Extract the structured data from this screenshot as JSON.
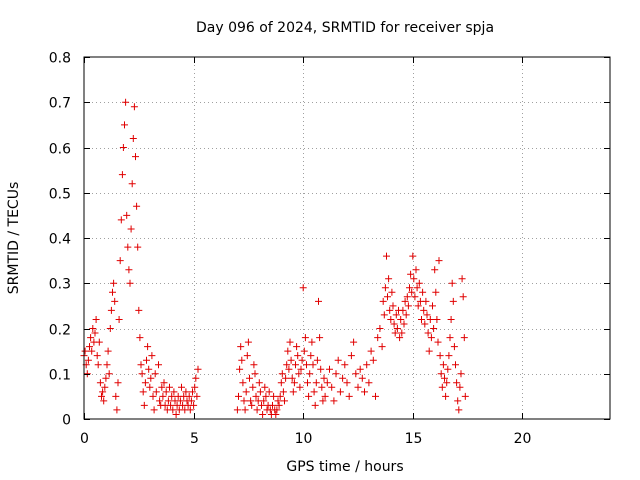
{
  "chart_data": {
    "type": "scatter",
    "title": "Day 096 of 2024, SRMTID for receiver spja",
    "xlabel": "GPS time / hours",
    "ylabel": "SRMTID / TECUs",
    "xlim": [
      0,
      24
    ],
    "ylim": [
      0,
      0.8
    ],
    "xticks": [
      0,
      5,
      10,
      15,
      20
    ],
    "yticks": [
      0,
      0.1,
      0.2,
      0.3,
      0.4,
      0.5,
      0.6,
      0.7,
      0.8
    ],
    "xtick_labels": [
      "0",
      "5",
      "10",
      "15",
      "20"
    ],
    "ytick_labels": [
      "0",
      "0.1",
      "0.2",
      "0.3",
      "0.4",
      "0.5",
      "0.6",
      "0.7",
      "0.8"
    ],
    "grid": true,
    "marker": "+",
    "color": "#e00000",
    "series": [
      {
        "name": "SRMTID",
        "points": [
          [
            0.0,
            0.14
          ],
          [
            0.05,
            0.15
          ],
          [
            0.1,
            0.12
          ],
          [
            0.15,
            0.1
          ],
          [
            0.2,
            0.13
          ],
          [
            0.25,
            0.16
          ],
          [
            0.3,
            0.18
          ],
          [
            0.35,
            0.15
          ],
          [
            0.4,
            0.2
          ],
          [
            0.45,
            0.17
          ],
          [
            0.5,
            0.19
          ],
          [
            0.55,
            0.22
          ],
          [
            0.6,
            0.14
          ],
          [
            0.65,
            0.12
          ],
          [
            0.7,
            0.17
          ],
          [
            0.75,
            0.08
          ],
          [
            0.8,
            0.05
          ],
          [
            0.85,
            0.06
          ],
          [
            0.9,
            0.04
          ],
          [
            0.95,
            0.07
          ],
          [
            1.0,
            0.09
          ],
          [
            1.05,
            0.12
          ],
          [
            1.1,
            0.15
          ],
          [
            1.15,
            0.1
          ],
          [
            1.2,
            0.2
          ],
          [
            1.25,
            0.24
          ],
          [
            1.3,
            0.28
          ],
          [
            1.35,
            0.3
          ],
          [
            1.4,
            0.26
          ],
          [
            1.45,
            0.05
          ],
          [
            1.5,
            0.02
          ],
          [
            1.55,
            0.08
          ],
          [
            1.6,
            0.22
          ],
          [
            1.65,
            0.35
          ],
          [
            1.7,
            0.44
          ],
          [
            1.75,
            0.54
          ],
          [
            1.8,
            0.6
          ],
          [
            1.85,
            0.65
          ],
          [
            1.9,
            0.7
          ],
          [
            1.95,
            0.45
          ],
          [
            2.0,
            0.38
          ],
          [
            2.05,
            0.33
          ],
          [
            2.1,
            0.3
          ],
          [
            2.15,
            0.42
          ],
          [
            2.2,
            0.52
          ],
          [
            2.25,
            0.62
          ],
          [
            2.3,
            0.69
          ],
          [
            2.35,
            0.58
          ],
          [
            2.4,
            0.47
          ],
          [
            2.45,
            0.38
          ],
          [
            2.5,
            0.24
          ],
          [
            2.55,
            0.18
          ],
          [
            2.6,
            0.12
          ],
          [
            2.65,
            0.1
          ],
          [
            2.7,
            0.06
          ],
          [
            2.75,
            0.03
          ],
          [
            2.8,
            0.08
          ],
          [
            2.85,
            0.13
          ],
          [
            2.9,
            0.16
          ],
          [
            2.95,
            0.11
          ],
          [
            3.0,
            0.07
          ],
          [
            3.05,
            0.09
          ],
          [
            3.1,
            0.14
          ],
          [
            3.15,
            0.05
          ],
          [
            3.2,
            0.02
          ],
          [
            3.25,
            0.1
          ],
          [
            3.3,
            0.06
          ],
          [
            3.4,
            0.12
          ],
          [
            3.45,
            0.04
          ],
          [
            3.5,
            0.03
          ],
          [
            3.55,
            0.07
          ],
          [
            3.6,
            0.05
          ],
          [
            3.65,
            0.08
          ],
          [
            3.7,
            0.03
          ],
          [
            3.75,
            0.06
          ],
          [
            3.8,
            0.02
          ],
          [
            3.85,
            0.04
          ],
          [
            3.9,
            0.07
          ],
          [
            3.95,
            0.03
          ],
          [
            4.0,
            0.05
          ],
          [
            4.05,
            0.02
          ],
          [
            4.1,
            0.06
          ],
          [
            4.15,
            0.04
          ],
          [
            4.2,
            0.01
          ],
          [
            4.25,
            0.03
          ],
          [
            4.3,
            0.05
          ],
          [
            4.35,
            0.02
          ],
          [
            4.4,
            0.04
          ],
          [
            4.45,
            0.07
          ],
          [
            4.5,
            0.03
          ],
          [
            4.55,
            0.05
          ],
          [
            4.6,
            0.02
          ],
          [
            4.65,
            0.06
          ],
          [
            4.7,
            0.04
          ],
          [
            4.75,
            0.03
          ],
          [
            4.8,
            0.05
          ],
          [
            4.85,
            0.02
          ],
          [
            4.9,
            0.04
          ],
          [
            4.95,
            0.06
          ],
          [
            5.0,
            0.03
          ],
          [
            5.05,
            0.07
          ],
          [
            5.1,
            0.09
          ],
          [
            5.15,
            0.05
          ],
          [
            5.2,
            0.11
          ],
          [
            7.0,
            0.02
          ],
          [
            7.05,
            0.05
          ],
          [
            7.1,
            0.11
          ],
          [
            7.15,
            0.16
          ],
          [
            7.2,
            0.13
          ],
          [
            7.25,
            0.08
          ],
          [
            7.3,
            0.04
          ],
          [
            7.35,
            0.02
          ],
          [
            7.4,
            0.06
          ],
          [
            7.45,
            0.14
          ],
          [
            7.5,
            0.17
          ],
          [
            7.55,
            0.09
          ],
          [
            7.6,
            0.04
          ],
          [
            7.65,
            0.03
          ],
          [
            7.7,
            0.07
          ],
          [
            7.75,
            0.12
          ],
          [
            7.8,
            0.1
          ],
          [
            7.85,
            0.05
          ],
          [
            7.9,
            0.02
          ],
          [
            7.95,
            0.04
          ],
          [
            8.0,
            0.08
          ],
          [
            8.05,
            0.06
          ],
          [
            8.1,
            0.03
          ],
          [
            8.15,
            0.01
          ],
          [
            8.2,
            0.04
          ],
          [
            8.25,
            0.07
          ],
          [
            8.3,
            0.05
          ],
          [
            8.35,
            0.02
          ],
          [
            8.4,
            0.03
          ],
          [
            8.45,
            0.06
          ],
          [
            8.5,
            0.02
          ],
          [
            8.55,
            0.01
          ],
          [
            8.6,
            0.03
          ],
          [
            8.65,
            0.05
          ],
          [
            8.7,
            0.02
          ],
          [
            8.75,
            0.01
          ],
          [
            8.8,
            0.02
          ],
          [
            8.85,
            0.04
          ],
          [
            8.9,
            0.03
          ],
          [
            8.95,
            0.05
          ],
          [
            9.0,
            0.08
          ],
          [
            9.05,
            0.1
          ],
          [
            9.1,
            0.06
          ],
          [
            9.15,
            0.04
          ],
          [
            9.2,
            0.09
          ],
          [
            9.25,
            0.12
          ],
          [
            9.3,
            0.15
          ],
          [
            9.35,
            0.11
          ],
          [
            9.4,
            0.17
          ],
          [
            9.45,
            0.13
          ],
          [
            9.5,
            0.09
          ],
          [
            9.55,
            0.06
          ],
          [
            9.6,
            0.08
          ],
          [
            9.65,
            0.12
          ],
          [
            9.7,
            0.16
          ],
          [
            9.75,
            0.14
          ],
          [
            9.8,
            0.1
          ],
          [
            9.85,
            0.07
          ],
          [
            9.9,
            0.11
          ],
          [
            9.95,
            0.13
          ],
          [
            10.0,
            0.29
          ],
          [
            10.05,
            0.15
          ],
          [
            10.1,
            0.18
          ],
          [
            10.15,
            0.12
          ],
          [
            10.2,
            0.08
          ],
          [
            10.25,
            0.05
          ],
          [
            10.3,
            0.1
          ],
          [
            10.35,
            0.14
          ],
          [
            10.4,
            0.17
          ],
          [
            10.45,
            0.12
          ],
          [
            10.5,
            0.06
          ],
          [
            10.55,
            0.03
          ],
          [
            10.6,
            0.08
          ],
          [
            10.65,
            0.13
          ],
          [
            10.7,
            0.26
          ],
          [
            10.75,
            0.18
          ],
          [
            10.8,
            0.11
          ],
          [
            10.85,
            0.07
          ],
          [
            10.9,
            0.04
          ],
          [
            10.95,
            0.09
          ],
          [
            11.0,
            0.05
          ],
          [
            11.1,
            0.08
          ],
          [
            11.2,
            0.11
          ],
          [
            11.3,
            0.07
          ],
          [
            11.4,
            0.04
          ],
          [
            11.5,
            0.1
          ],
          [
            11.6,
            0.13
          ],
          [
            11.7,
            0.06
          ],
          [
            11.8,
            0.09
          ],
          [
            11.9,
            0.12
          ],
          [
            12.0,
            0.08
          ],
          [
            12.1,
            0.05
          ],
          [
            12.2,
            0.14
          ],
          [
            12.3,
            0.17
          ],
          [
            12.4,
            0.1
          ],
          [
            12.5,
            0.07
          ],
          [
            12.6,
            0.11
          ],
          [
            12.7,
            0.09
          ],
          [
            12.8,
            0.06
          ],
          [
            12.9,
            0.12
          ],
          [
            13.0,
            0.08
          ],
          [
            13.1,
            0.15
          ],
          [
            13.2,
            0.13
          ],
          [
            13.3,
            0.05
          ],
          [
            13.4,
            0.18
          ],
          [
            13.5,
            0.2
          ],
          [
            13.6,
            0.16
          ],
          [
            13.65,
            0.26
          ],
          [
            13.7,
            0.23
          ],
          [
            13.75,
            0.29
          ],
          [
            13.8,
            0.36
          ],
          [
            13.85,
            0.27
          ],
          [
            13.9,
            0.31
          ],
          [
            13.95,
            0.24
          ],
          [
            14.0,
            0.22
          ],
          [
            14.05,
            0.28
          ],
          [
            14.1,
            0.25
          ],
          [
            14.15,
            0.21
          ],
          [
            14.2,
            0.19
          ],
          [
            14.25,
            0.23
          ],
          [
            14.3,
            0.2
          ],
          [
            14.35,
            0.24
          ],
          [
            14.4,
            0.18
          ],
          [
            14.45,
            0.22
          ],
          [
            14.5,
            0.19
          ],
          [
            14.55,
            0.24
          ],
          [
            14.6,
            0.21
          ],
          [
            14.65,
            0.26
          ],
          [
            14.7,
            0.23
          ],
          [
            14.75,
            0.27
          ],
          [
            14.8,
            0.25
          ],
          [
            14.85,
            0.29
          ],
          [
            14.9,
            0.32
          ],
          [
            14.95,
            0.28
          ],
          [
            15.0,
            0.36
          ],
          [
            15.05,
            0.31
          ],
          [
            15.1,
            0.27
          ],
          [
            15.15,
            0.33
          ],
          [
            15.2,
            0.29
          ],
          [
            15.25,
            0.25
          ],
          [
            15.3,
            0.3
          ],
          [
            15.35,
            0.26
          ],
          [
            15.4,
            0.22
          ],
          [
            15.45,
            0.28
          ],
          [
            15.5,
            0.24
          ],
          [
            15.55,
            0.21
          ],
          [
            15.6,
            0.26
          ],
          [
            15.65,
            0.23
          ],
          [
            15.7,
            0.19
          ],
          [
            15.75,
            0.15
          ],
          [
            15.8,
            0.22
          ],
          [
            15.85,
            0.18
          ],
          [
            15.9,
            0.25
          ],
          [
            15.95,
            0.2
          ],
          [
            16.0,
            0.33
          ],
          [
            16.05,
            0.28
          ],
          [
            16.1,
            0.22
          ],
          [
            16.15,
            0.17
          ],
          [
            16.2,
            0.35
          ],
          [
            16.25,
            0.14
          ],
          [
            16.3,
            0.1
          ],
          [
            16.35,
            0.07
          ],
          [
            16.4,
            0.12
          ],
          [
            16.45,
            0.09
          ],
          [
            16.5,
            0.05
          ],
          [
            16.55,
            0.08
          ],
          [
            16.6,
            0.11
          ],
          [
            16.65,
            0.14
          ],
          [
            16.7,
            0.18
          ],
          [
            16.75,
            0.22
          ],
          [
            16.8,
            0.3
          ],
          [
            16.85,
            0.26
          ],
          [
            16.9,
            0.16
          ],
          [
            16.95,
            0.12
          ],
          [
            17.0,
            0.08
          ],
          [
            17.05,
            0.04
          ],
          [
            17.1,
            0.02
          ],
          [
            17.15,
            0.07
          ],
          [
            17.2,
            0.1
          ],
          [
            17.25,
            0.31
          ],
          [
            17.3,
            0.27
          ],
          [
            17.35,
            0.18
          ],
          [
            17.4,
            0.05
          ]
        ]
      }
    ]
  }
}
